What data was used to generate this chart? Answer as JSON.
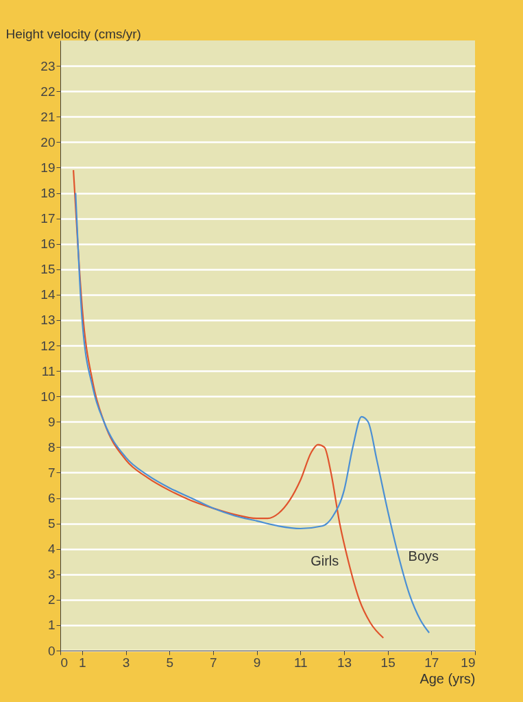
{
  "chart_data": {
    "type": "line",
    "xlabel": "Age (yrs)",
    "ylabel": "Height velocity (cms/yr)",
    "xlim": [
      0,
      19
    ],
    "xticks": [
      0,
      1,
      3,
      5,
      7,
      9,
      11,
      13,
      15,
      17,
      19
    ],
    "ylim": [
      0,
      24
    ],
    "yticks": [
      0,
      1,
      2,
      3,
      4,
      5,
      6,
      7,
      8,
      9,
      10,
      11,
      12,
      13,
      14,
      15,
      16,
      17,
      18,
      19,
      20,
      21,
      22,
      23
    ],
    "grid": "y",
    "legend": false,
    "series": [
      {
        "name": "Girls",
        "color": "#e0532c",
        "x": [
          0.6,
          0.8,
          1,
          1.5,
          2,
          3,
          4,
          5,
          6,
          7,
          8,
          9,
          9.5,
          10,
          10.5,
          11,
          11.5,
          11.8,
          12.1,
          12.4,
          12.8,
          13.2,
          13.7,
          14.2,
          14.8
        ],
        "values": [
          18.9,
          16,
          13.5,
          10.5,
          9,
          7.5,
          6.8,
          6.3,
          5.9,
          5.6,
          5.35,
          5.2,
          5.2,
          5.4,
          5.9,
          6.7,
          7.8,
          8.1,
          8,
          7,
          5,
          3.5,
          2,
          1.1,
          0.5
        ]
      },
      {
        "name": "Boys",
        "color": "#4a8fd4",
        "x": [
          0.7,
          1,
          1.5,
          2,
          3,
          4,
          5,
          6,
          7,
          8,
          9,
          10,
          11,
          12,
          12.5,
          13,
          13.4,
          13.8,
          14.1,
          14.5,
          15,
          15.5,
          16,
          16.5,
          16.9
        ],
        "values": [
          18,
          13,
          10.3,
          9,
          7.6,
          6.9,
          6.4,
          6,
          5.6,
          5.3,
          5.1,
          4.9,
          4.8,
          4.9,
          5.3,
          6.3,
          8,
          9.2,
          9,
          7.5,
          5.5,
          3.7,
          2.2,
          1.2,
          0.7
        ]
      }
    ]
  }
}
